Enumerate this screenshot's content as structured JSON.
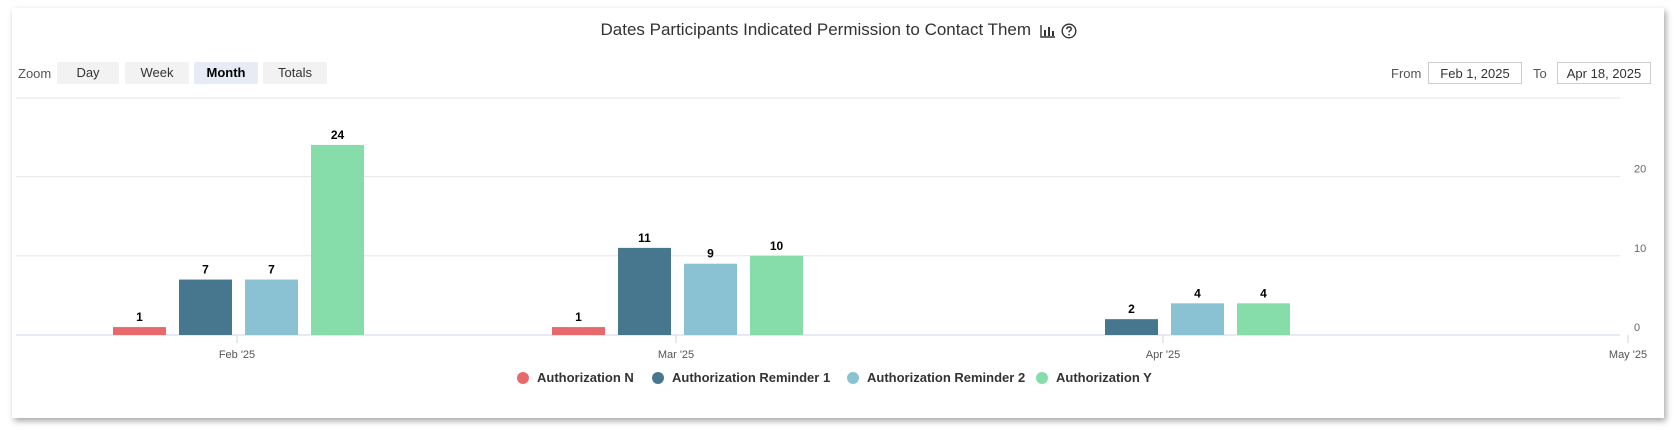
{
  "header": {
    "title": "Dates Participants Indicated Permission to Contact Them",
    "chart_icon": "bar-chart-icon",
    "help_icon": "help-circle-icon"
  },
  "zoom": {
    "label": "Zoom",
    "buttons": [
      "Day",
      "Week",
      "Month",
      "Totals"
    ],
    "selected": "Month"
  },
  "range": {
    "from_label": "From",
    "from_value": "Feb 1, 2025",
    "to_label": "To",
    "to_value": "Apr 18, 2025"
  },
  "chart_data": {
    "type": "bar",
    "title": "Dates Participants Indicated Permission to Contact Them",
    "categories": [
      "Feb '25",
      "Mar '25",
      "Apr '25"
    ],
    "x_ticks": [
      "Feb '25",
      "Mar '25",
      "Apr '25",
      "May '25"
    ],
    "series": [
      {
        "name": "Authorization N",
        "color": "#e8696b",
        "values": [
          1,
          1,
          null
        ]
      },
      {
        "name": "Authorization Reminder 1",
        "color": "#47778f",
        "values": [
          7,
          11,
          2
        ]
      },
      {
        "name": "Authorization Reminder 2",
        "color": "#8ac1d3",
        "values": [
          7,
          9,
          4
        ]
      },
      {
        "name": "Authorization Y",
        "color": "#86ddaa",
        "values": [
          24,
          10,
          4
        ]
      }
    ],
    "y_ticks": [
      0,
      10,
      20
    ],
    "ylim": [
      0,
      30
    ],
    "y_axis_side": "right",
    "grid": true,
    "legend_position": "bottom-center",
    "data_labels": true
  }
}
